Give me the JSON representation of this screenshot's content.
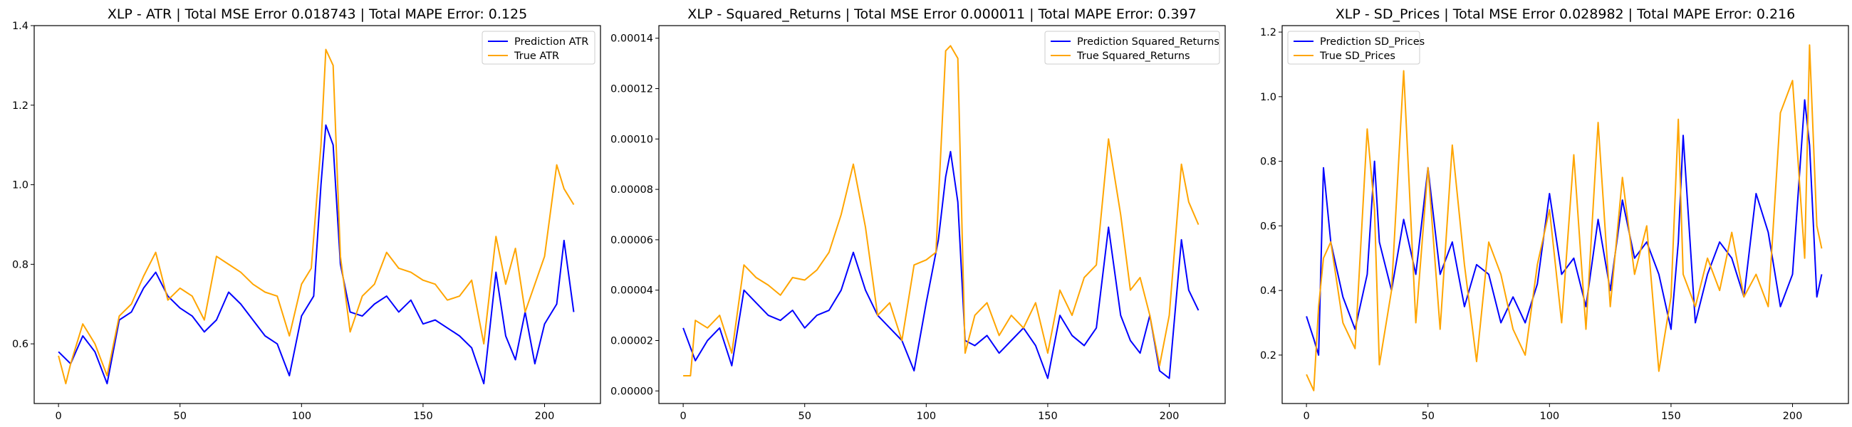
{
  "figure": {
    "background": "#ffffff"
  },
  "chart_data": [
    {
      "type": "line",
      "title": "XLP - ATR | Total MSE Error 0.018743 | Total MAPE Error: 0.125",
      "xlabel": "",
      "ylabel": "",
      "xlim": [
        -10,
        223
      ],
      "ylim": [
        0.45,
        1.4
      ],
      "xticks": [
        0,
        50,
        100,
        150,
        200
      ],
      "xtick_labels": [
        "0",
        "50",
        "100",
        "150",
        "200"
      ],
      "yticks": [
        0.6,
        0.8,
        1.0,
        1.2,
        1.4
      ],
      "ytick_labels": [
        "0.6",
        "0.8",
        "1.0",
        "1.2",
        "1.4"
      ],
      "grid": false,
      "legend_position": "top-right",
      "series": [
        {
          "name": "Prediction ATR",
          "color": "#0000ff",
          "x": [
            0,
            5,
            10,
            15,
            20,
            25,
            30,
            35,
            40,
            45,
            50,
            55,
            60,
            65,
            70,
            75,
            80,
            85,
            90,
            95,
            100,
            105,
            108,
            110,
            113,
            116,
            120,
            125,
            130,
            135,
            140,
            145,
            150,
            155,
            160,
            165,
            170,
            175,
            180,
            184,
            188,
            192,
            196,
            200,
            205,
            208,
            212
          ],
          "values": [
            0.58,
            0.55,
            0.62,
            0.58,
            0.5,
            0.66,
            0.68,
            0.74,
            0.78,
            0.72,
            0.69,
            0.67,
            0.63,
            0.66,
            0.73,
            0.7,
            0.66,
            0.62,
            0.6,
            0.52,
            0.67,
            0.72,
            1.0,
            1.15,
            1.1,
            0.8,
            0.68,
            0.67,
            0.7,
            0.72,
            0.68,
            0.71,
            0.65,
            0.66,
            0.64,
            0.62,
            0.59,
            0.5,
            0.78,
            0.62,
            0.56,
            0.68,
            0.55,
            0.65,
            0.7,
            0.86,
            0.68
          ]
        },
        {
          "name": "True ATR",
          "color": "#ffa500",
          "x": [
            0,
            3,
            5,
            10,
            15,
            20,
            25,
            30,
            35,
            40,
            45,
            50,
            55,
            60,
            65,
            70,
            75,
            80,
            85,
            90,
            95,
            100,
            104,
            108,
            110,
            113,
            116,
            120,
            125,
            130,
            135,
            140,
            145,
            150,
            155,
            160,
            165,
            170,
            175,
            180,
            184,
            188,
            192,
            196,
            200,
            205,
            208,
            212
          ],
          "values": [
            0.57,
            0.5,
            0.55,
            0.65,
            0.6,
            0.52,
            0.67,
            0.7,
            0.77,
            0.83,
            0.71,
            0.74,
            0.72,
            0.66,
            0.82,
            0.8,
            0.78,
            0.75,
            0.73,
            0.72,
            0.62,
            0.75,
            0.79,
            1.1,
            1.34,
            1.3,
            0.82,
            0.63,
            0.72,
            0.75,
            0.83,
            0.79,
            0.78,
            0.76,
            0.75,
            0.71,
            0.72,
            0.76,
            0.6,
            0.87,
            0.75,
            0.84,
            0.68,
            0.75,
            0.82,
            1.05,
            0.99,
            0.95
          ]
        }
      ]
    },
    {
      "type": "line",
      "title": "XLP - Squared_Returns | Total MSE Error 0.000011 | Total MAPE Error: 0.397",
      "xlabel": "",
      "ylabel": "",
      "xlim": [
        -10,
        223
      ],
      "ylim": [
        -5e-06,
        0.000145
      ],
      "xticks": [
        0,
        50,
        100,
        150,
        200
      ],
      "xtick_labels": [
        "0",
        "50",
        "100",
        "150",
        "200"
      ],
      "yticks": [
        0.0,
        2e-05,
        4e-05,
        6e-05,
        8e-05,
        0.0001,
        0.00012,
        0.00014
      ],
      "ytick_labels": [
        "0.00000",
        "0.00002",
        "0.00004",
        "0.00006",
        "0.00008",
        "0.00010",
        "0.00012",
        "0.00014"
      ],
      "grid": false,
      "legend_position": "top-right",
      "series": [
        {
          "name": "Prediction Squared_Returns",
          "color": "#0000ff",
          "x": [
            0,
            5,
            10,
            15,
            20,
            25,
            30,
            35,
            40,
            45,
            50,
            55,
            60,
            65,
            70,
            75,
            80,
            85,
            90,
            95,
            100,
            105,
            108,
            110,
            113,
            116,
            120,
            125,
            130,
            135,
            140,
            145,
            150,
            155,
            160,
            165,
            170,
            175,
            180,
            184,
            188,
            192,
            196,
            200,
            205,
            208,
            212
          ],
          "values": [
            2.5e-05,
            1.2e-05,
            2e-05,
            2.5e-05,
            1e-05,
            4e-05,
            3.5e-05,
            3e-05,
            2.8e-05,
            3.2e-05,
            2.5e-05,
            3e-05,
            3.2e-05,
            4e-05,
            5.5e-05,
            4e-05,
            3e-05,
            2.5e-05,
            2e-05,
            8e-06,
            3.5e-05,
            6e-05,
            8.5e-05,
            9.5e-05,
            7.5e-05,
            2e-05,
            1.8e-05,
            2.2e-05,
            1.5e-05,
            2e-05,
            2.5e-05,
            1.8e-05,
            5e-06,
            3e-05,
            2.2e-05,
            1.8e-05,
            2.5e-05,
            6.5e-05,
            3e-05,
            2e-05,
            1.5e-05,
            3e-05,
            8e-06,
            5e-06,
            6e-05,
            4e-05,
            3.2e-05
          ]
        },
        {
          "name": "True Squared_Returns",
          "color": "#ffa500",
          "x": [
            0,
            3,
            5,
            10,
            15,
            20,
            25,
            30,
            35,
            40,
            45,
            50,
            55,
            60,
            65,
            70,
            75,
            80,
            85,
            90,
            95,
            100,
            104,
            108,
            110,
            113,
            116,
            120,
            125,
            130,
            135,
            140,
            145,
            150,
            155,
            160,
            165,
            170,
            175,
            180,
            184,
            188,
            192,
            196,
            200,
            205,
            208,
            212
          ],
          "values": [
            6e-06,
            6e-06,
            2.8e-05,
            2.5e-05,
            3e-05,
            1.5e-05,
            5e-05,
            4.5e-05,
            4.2e-05,
            3.8e-05,
            4.5e-05,
            4.4e-05,
            4.8e-05,
            5.5e-05,
            7e-05,
            9e-05,
            6.5e-05,
            3e-05,
            3.5e-05,
            2e-05,
            5e-05,
            5.2e-05,
            5.5e-05,
            0.000135,
            0.000137,
            0.000132,
            1.5e-05,
            3e-05,
            3.5e-05,
            2.2e-05,
            3e-05,
            2.5e-05,
            3.5e-05,
            1.5e-05,
            4e-05,
            3e-05,
            4.5e-05,
            5e-05,
            0.0001,
            7e-05,
            4e-05,
            4.5e-05,
            3e-05,
            1e-05,
            3e-05,
            9e-05,
            7.5e-05,
            6.6e-05
          ]
        }
      ]
    },
    {
      "type": "line",
      "title": "XLP - SD_Prices | Total MSE Error 0.028982 | Total MAPE Error: 0.216",
      "xlabel": "",
      "ylabel": "",
      "xlim": [
        -10,
        223
      ],
      "ylim": [
        0.05,
        1.22
      ],
      "xticks": [
        0,
        50,
        100,
        150,
        200
      ],
      "xtick_labels": [
        "0",
        "50",
        "100",
        "150",
        "200"
      ],
      "yticks": [
        0.2,
        0.4,
        0.6,
        0.8,
        1.0,
        1.2
      ],
      "ytick_labels": [
        "0.2",
        "0.4",
        "0.6",
        "0.8",
        "1.0",
        "1.2"
      ],
      "grid": false,
      "legend_position": "top-left",
      "series": [
        {
          "name": "Prediction SD_Prices",
          "color": "#0000ff",
          "x": [
            0,
            3,
            5,
            7,
            10,
            15,
            20,
            25,
            28,
            30,
            35,
            40,
            45,
            50,
            55,
            60,
            65,
            70,
            75,
            80,
            85,
            90,
            95,
            100,
            105,
            110,
            115,
            120,
            125,
            130,
            135,
            140,
            145,
            150,
            153,
            155,
            160,
            165,
            170,
            175,
            180,
            185,
            190,
            195,
            200,
            205,
            207,
            210,
            212
          ],
          "values": [
            0.32,
            0.25,
            0.2,
            0.78,
            0.55,
            0.38,
            0.28,
            0.45,
            0.8,
            0.55,
            0.4,
            0.62,
            0.45,
            0.78,
            0.45,
            0.55,
            0.35,
            0.48,
            0.45,
            0.3,
            0.38,
            0.3,
            0.42,
            0.7,
            0.45,
            0.5,
            0.35,
            0.62,
            0.4,
            0.68,
            0.5,
            0.55,
            0.45,
            0.28,
            0.55,
            0.88,
            0.3,
            0.45,
            0.55,
            0.5,
            0.38,
            0.7,
            0.58,
            0.35,
            0.45,
            0.99,
            0.85,
            0.38,
            0.45
          ]
        },
        {
          "name": "True SD_Prices",
          "color": "#ffa500",
          "x": [
            0,
            3,
            5,
            7,
            10,
            15,
            20,
            25,
            28,
            30,
            35,
            40,
            45,
            50,
            55,
            60,
            65,
            70,
            75,
            80,
            85,
            90,
            95,
            100,
            105,
            110,
            115,
            120,
            125,
            130,
            135,
            140,
            145,
            150,
            153,
            155,
            160,
            165,
            170,
            175,
            180,
            185,
            190,
            195,
            200,
            205,
            207,
            210,
            212
          ],
          "values": [
            0.14,
            0.09,
            0.35,
            0.5,
            0.55,
            0.3,
            0.22,
            0.9,
            0.65,
            0.17,
            0.4,
            1.08,
            0.3,
            0.78,
            0.28,
            0.85,
            0.48,
            0.18,
            0.55,
            0.45,
            0.28,
            0.2,
            0.48,
            0.65,
            0.3,
            0.82,
            0.28,
            0.92,
            0.35,
            0.75,
            0.45,
            0.6,
            0.15,
            0.38,
            0.93,
            0.45,
            0.35,
            0.5,
            0.4,
            0.58,
            0.38,
            0.45,
            0.35,
            0.95,
            1.05,
            0.5,
            1.16,
            0.6,
            0.53
          ]
        }
      ]
    }
  ]
}
